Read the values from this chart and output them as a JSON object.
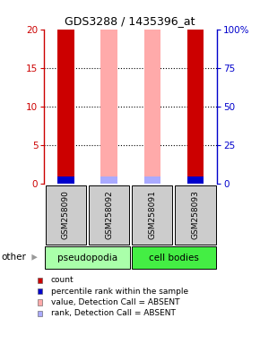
{
  "title": "GDS3288 / 1435396_at",
  "samples": [
    "GSM258090",
    "GSM258092",
    "GSM258091",
    "GSM258093"
  ],
  "groups": [
    "pseudopodia",
    "pseudopodia",
    "cell bodies",
    "cell bodies"
  ],
  "count_values": [
    20,
    20,
    20,
    20
  ],
  "count_colors": [
    "#cc0000",
    "#ffaaaa",
    "#ffaaaa",
    "#cc0000"
  ],
  "rank_values": [
    1.0,
    1.0,
    1.0,
    1.0
  ],
  "rank_colors": [
    "#0000cc",
    "#aaaaff",
    "#aaaaff",
    "#0000cc"
  ],
  "ylim": [
    0,
    20
  ],
  "y2lim": [
    0,
    100
  ],
  "yticks": [
    0,
    5,
    10,
    15,
    20
  ],
  "y2ticks": [
    0,
    25,
    50,
    75,
    100
  ],
  "y_color": "#cc0000",
  "y2_color": "#0000cc",
  "bar_width": 0.38,
  "sample_box_color": "#cccccc",
  "group_light_green": "#aaffaa",
  "group_dark_green": "#44ee44",
  "legend_items": [
    {
      "label": "count",
      "color": "#cc0000"
    },
    {
      "label": "percentile rank within the sample",
      "color": "#0000cc"
    },
    {
      "label": "value, Detection Call = ABSENT",
      "color": "#ffaaaa"
    },
    {
      "label": "rank, Detection Call = ABSENT",
      "color": "#aaaaff"
    }
  ]
}
